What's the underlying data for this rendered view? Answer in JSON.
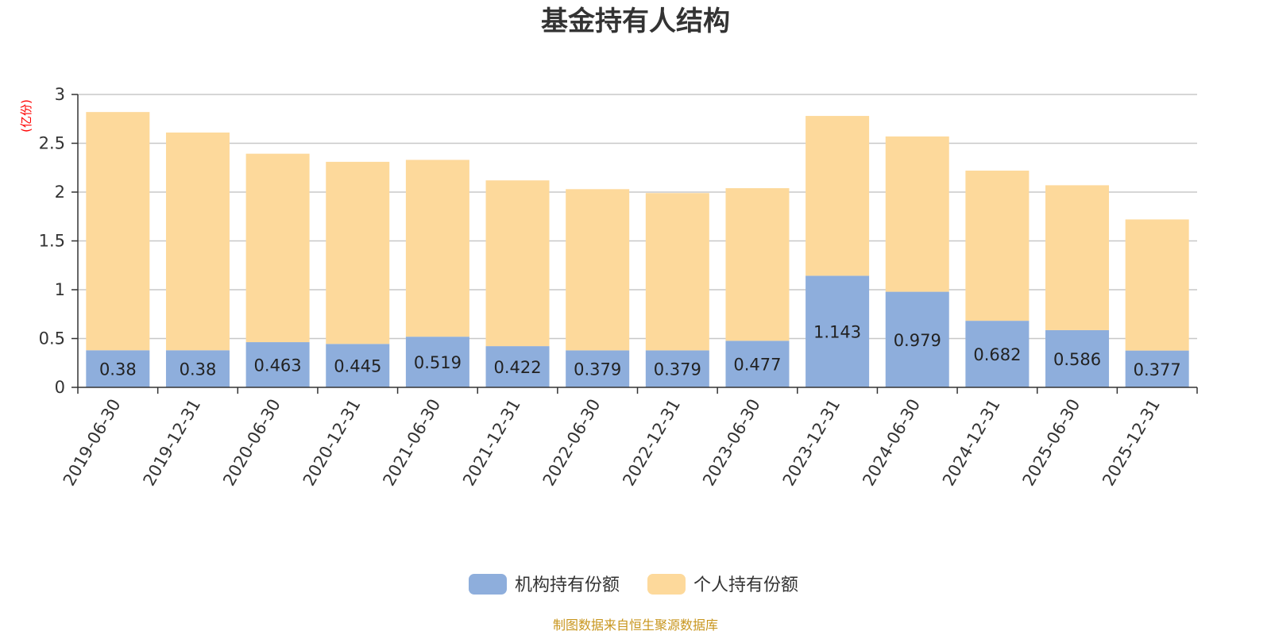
{
  "chart_data": {
    "type": "bar",
    "stacked": true,
    "title": "基金持有人结构",
    "ylabel": "(亿份)",
    "ylim": [
      0,
      3
    ],
    "yticks": [
      "0",
      "0.5",
      "1",
      "1.5",
      "2",
      "2.5",
      "3"
    ],
    "grid": true,
    "legend_position": "bottom",
    "categories": [
      "2019-06-30",
      "2019-12-31",
      "2020-06-30",
      "2020-12-31",
      "2021-06-30",
      "2021-12-31",
      "2022-06-30",
      "2022-12-31",
      "2023-06-30",
      "2023-12-31",
      "2024-06-30",
      "2024-12-31",
      "2025-06-30",
      "2025-12-31"
    ],
    "series": [
      {
        "name": "机构持有份额",
        "color": "#8eaedc",
        "values": [
          0.38,
          0.38,
          0.463,
          0.445,
          0.519,
          0.422,
          0.379,
          0.379,
          0.477,
          1.143,
          0.979,
          0.682,
          0.586,
          0.377
        ],
        "labels": [
          "0.38",
          "0.38",
          "0.463",
          "0.445",
          "0.519",
          "0.422",
          "0.379",
          "0.379",
          "0.477",
          "1.143",
          "0.979",
          "0.682",
          "0.586",
          "0.377"
        ]
      },
      {
        "name": "个人持有份额",
        "color": "#fdd99b",
        "values": [
          2.44,
          2.23,
          1.93,
          1.865,
          1.811,
          1.698,
          1.651,
          1.611,
          1.563,
          1.637,
          1.591,
          1.538,
          1.484,
          1.343
        ]
      }
    ],
    "source": "制图数据来自恒生聚源数据库"
  }
}
